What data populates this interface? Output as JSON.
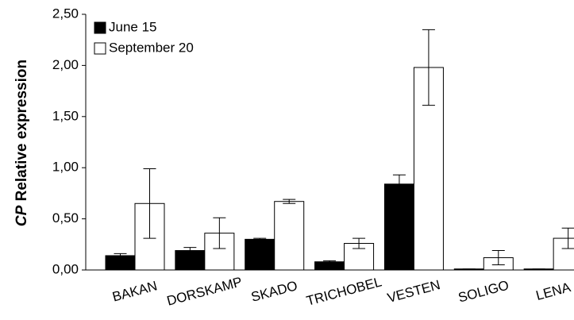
{
  "chart_data": {
    "type": "bar",
    "ylabel_gene": "CP",
    "ylabel": "Relative expression",
    "categories": [
      "BAKAN",
      "DORSKAMP",
      "SKADO",
      "TRICHOBEL",
      "VESTEN",
      "SOLIGO",
      "LENA"
    ],
    "series": [
      {
        "name": "June 15",
        "color": "#000000",
        "values": [
          0.14,
          0.19,
          0.3,
          0.08,
          0.84,
          0.01,
          0.01
        ],
        "errors": [
          0.02,
          0.03,
          0.01,
          0.01,
          0.09,
          0.0,
          0.0
        ]
      },
      {
        "name": "September 20",
        "color": "#ffffff",
        "values": [
          0.65,
          0.36,
          0.67,
          0.26,
          1.98,
          0.12,
          0.31
        ],
        "errors": [
          0.34,
          0.15,
          0.02,
          0.05,
          0.37,
          0.07,
          0.1
        ]
      }
    ],
    "ylim": [
      0,
      2.5
    ],
    "yticks": [
      {
        "value": 0,
        "label": "0,00"
      },
      {
        "value": 0.5,
        "label": "0,50"
      },
      {
        "value": 1,
        "label": "1,00"
      },
      {
        "value": 1.5,
        "label": "1,50"
      },
      {
        "value": 2,
        "label": "2,00"
      },
      {
        "value": 2.5,
        "label": "2,50"
      }
    ],
    "legend": "upper left"
  }
}
